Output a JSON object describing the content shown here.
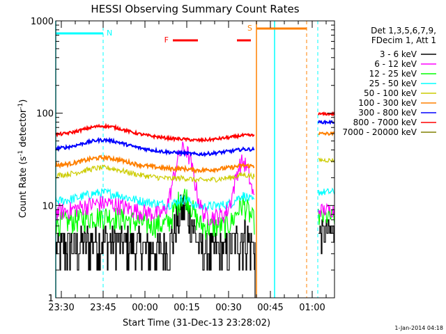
{
  "chart_data": {
    "type": "line",
    "title": "HESSI Observing Summary Count Rates",
    "xlabel": "Start Time (31-Dec-13 23:28:02)",
    "ylabel_main": "Count Rate (s",
    "ylabel_sup1": "-1",
    "ylabel_mid": " detector",
    "ylabel_sup2": "-1",
    "ylabel_end": ")",
    "x_units": "minutes after 23:28:02",
    "xlim": [
      0,
      100
    ],
    "ylim": [
      1,
      1000
    ],
    "yscale": "log",
    "x_ticks": [
      {
        "label": "23:30",
        "x": 2
      },
      {
        "label": "23:45",
        "x": 17
      },
      {
        "label": "00:00",
        "x": 32
      },
      {
        "label": "00:15",
        "x": 47
      },
      {
        "label": "00:30",
        "x": 62
      },
      {
        "label": "00:45",
        "x": 77
      },
      {
        "label": "01:00",
        "x": 92
      }
    ],
    "y_ticks": [
      {
        "label": "1",
        "y": 1
      },
      {
        "label": "10",
        "y": 10
      },
      {
        "label": "100",
        "y": 100
      },
      {
        "label": "1000",
        "y": 1000
      }
    ],
    "legend_header": [
      "Det 1,3,5,6,7,9,",
      "FDecim 1, Att 1"
    ],
    "series": [
      {
        "name": "3 - 6 keV",
        "color": "#000000",
        "base": 3.5,
        "noise": 0.55,
        "peak": 2.0,
        "peak_x": 46,
        "peak_w": 2.5,
        "peak2": 0.4,
        "peak2_x": 67,
        "peak2_w": 2,
        "bump": 0.2,
        "end": 5
      },
      {
        "name": "6 - 12 keV",
        "color": "#ff00ff",
        "base": 8.5,
        "noise": 0.22,
        "peak": 4.5,
        "peak_x": 46,
        "peak_w": 2.6,
        "peak2": 2.6,
        "peak2_x": 67,
        "peak2_w": 2.2,
        "bump": 0.25,
        "end": 9
      },
      {
        "name": "12 - 25 keV",
        "color": "#00ff00",
        "base": 6.5,
        "noise": 0.3,
        "peak": 1.2,
        "peak_x": 46,
        "peak_w": 2.5,
        "peak2": 0.6,
        "peak2_x": 67,
        "peak2_w": 2,
        "bump": 0.2,
        "end": 7.5
      },
      {
        "name": "25 - 50 keV",
        "color": "#00ffff",
        "base": 11,
        "noise": 0.12,
        "peak": 0.2,
        "peak_x": 46,
        "peak_w": 2.5,
        "peak2": 0.2,
        "peak2_x": 67,
        "peak2_w": 2,
        "bump": 0.25,
        "end": 14
      },
      {
        "name": "50 - 100 keV",
        "color": "#cccc00",
        "base": 21,
        "noise": 0.07,
        "peak": 0.05,
        "peak_x": 46,
        "peak_w": 2.5,
        "peak2": 0.05,
        "peak2_x": 67,
        "peak2_w": 2,
        "bump": 0.22,
        "end": 31
      },
      {
        "name": "100 - 300 keV",
        "color": "#ff8000",
        "base": 27,
        "noise": 0.05,
        "peak": 0.03,
        "peak_x": 46,
        "peak_w": 2.5,
        "peak2": 0.03,
        "peak2_x": 67,
        "peak2_w": 2,
        "bump": 0.22,
        "end": 60
      },
      {
        "name": "300 - 800 keV",
        "color": "#0000ff",
        "base": 41,
        "noise": 0.04,
        "peak": 0.02,
        "peak_x": 46,
        "peak_w": 2.5,
        "peak2": 0.02,
        "peak2_x": 67,
        "peak2_w": 2,
        "bump": 0.25,
        "end": 80
      },
      {
        "name": "800 - 7000 keV",
        "color": "#ff0000",
        "base": 58,
        "noise": 0.035,
        "peak": 0.02,
        "peak_x": 46,
        "peak_w": 2.5,
        "peak2": 0.02,
        "peak2_x": 67,
        "peak2_w": 2,
        "bump": 0.25,
        "end": 98
      },
      {
        "name": "7000 - 20000 keV",
        "color": "#808000",
        "base": 0,
        "noise": 0,
        "peak": 0,
        "peak_x": 0,
        "peak_w": 1,
        "peak2": 0,
        "peak2_x": 0,
        "peak2_w": 1,
        "bump": 0,
        "end": 0
      }
    ],
    "gap_start": 71.5,
    "gap_end": 94,
    "annotations": {
      "N": {
        "label": "N",
        "color": "#00ffff",
        "bars": [
          [
            0,
            17
          ]
        ],
        "dashed_x": [
          17,
          94
        ],
        "solid_x": [
          0,
          78.5
        ]
      },
      "F": {
        "label": "F",
        "color": "#ff0000",
        "bars": [
          [
            42,
            51
          ],
          [
            65,
            70
          ]
        ]
      },
      "S": {
        "label": "S",
        "color": "#ff8000",
        "bars": [
          [
            72,
            90
          ]
        ],
        "dashed_x": [
          90
        ],
        "solid_x": [
          72
        ]
      }
    },
    "grid": false,
    "legend_position": "right"
  },
  "timestamp": "1-Jan-2014 04:18"
}
